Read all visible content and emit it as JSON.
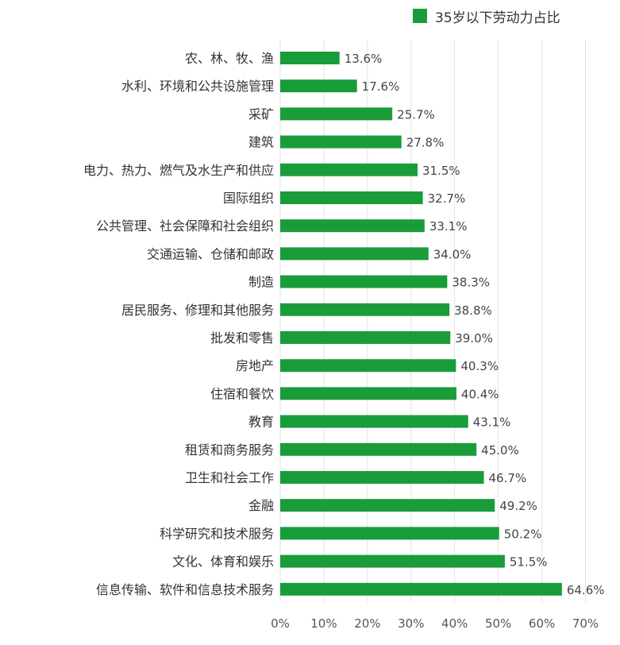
{
  "chart_data": {
    "type": "bar",
    "orientation": "horizontal",
    "categories": [
      "农、林、牧、渔",
      "水利、环境和公共设施管理",
      "采矿",
      "建筑",
      "电力、热力、燃气及水生产和供应",
      "国际组织",
      "公共管理、社会保障和社会组织",
      "交通运输、仓储和邮政",
      "制造",
      "居民服务、修理和其他服务",
      "批发和零售",
      "房地产",
      "住宿和餐饮",
      "教育",
      "租赁和商务服务",
      "卫生和社会工作",
      "金融",
      "科学研究和技术服务",
      "文化、体育和娱乐",
      "信息传输、软件和信息技术服务"
    ],
    "series": [
      {
        "name": "35岁以下劳动力占比",
        "color": "#1a9c3a",
        "values": [
          13.6,
          17.6,
          25.7,
          27.8,
          31.5,
          32.7,
          33.1,
          34.0,
          38.3,
          38.8,
          39.0,
          40.3,
          40.4,
          43.1,
          45.0,
          46.7,
          49.2,
          50.2,
          51.5,
          64.6
        ],
        "labels": [
          "13.6%",
          "17.6%",
          "25.7%",
          "27.8%",
          "31.5%",
          "32.7%",
          "33.1%",
          "34.0%",
          "38.3%",
          "38.8%",
          "39.0%",
          "40.3%",
          "40.4%",
          "43.1%",
          "45.0%",
          "46.7%",
          "49.2%",
          "50.2%",
          "51.5%",
          "64.6%"
        ]
      }
    ],
    "xlim": [
      0,
      70
    ],
    "xticks": [
      "0%",
      "10%",
      "20%",
      "30%",
      "40%",
      "50%",
      "60%",
      "70%"
    ],
    "grid": "vertical",
    "legend_position": "top-right",
    "title": "",
    "xlabel": "",
    "ylabel": ""
  }
}
